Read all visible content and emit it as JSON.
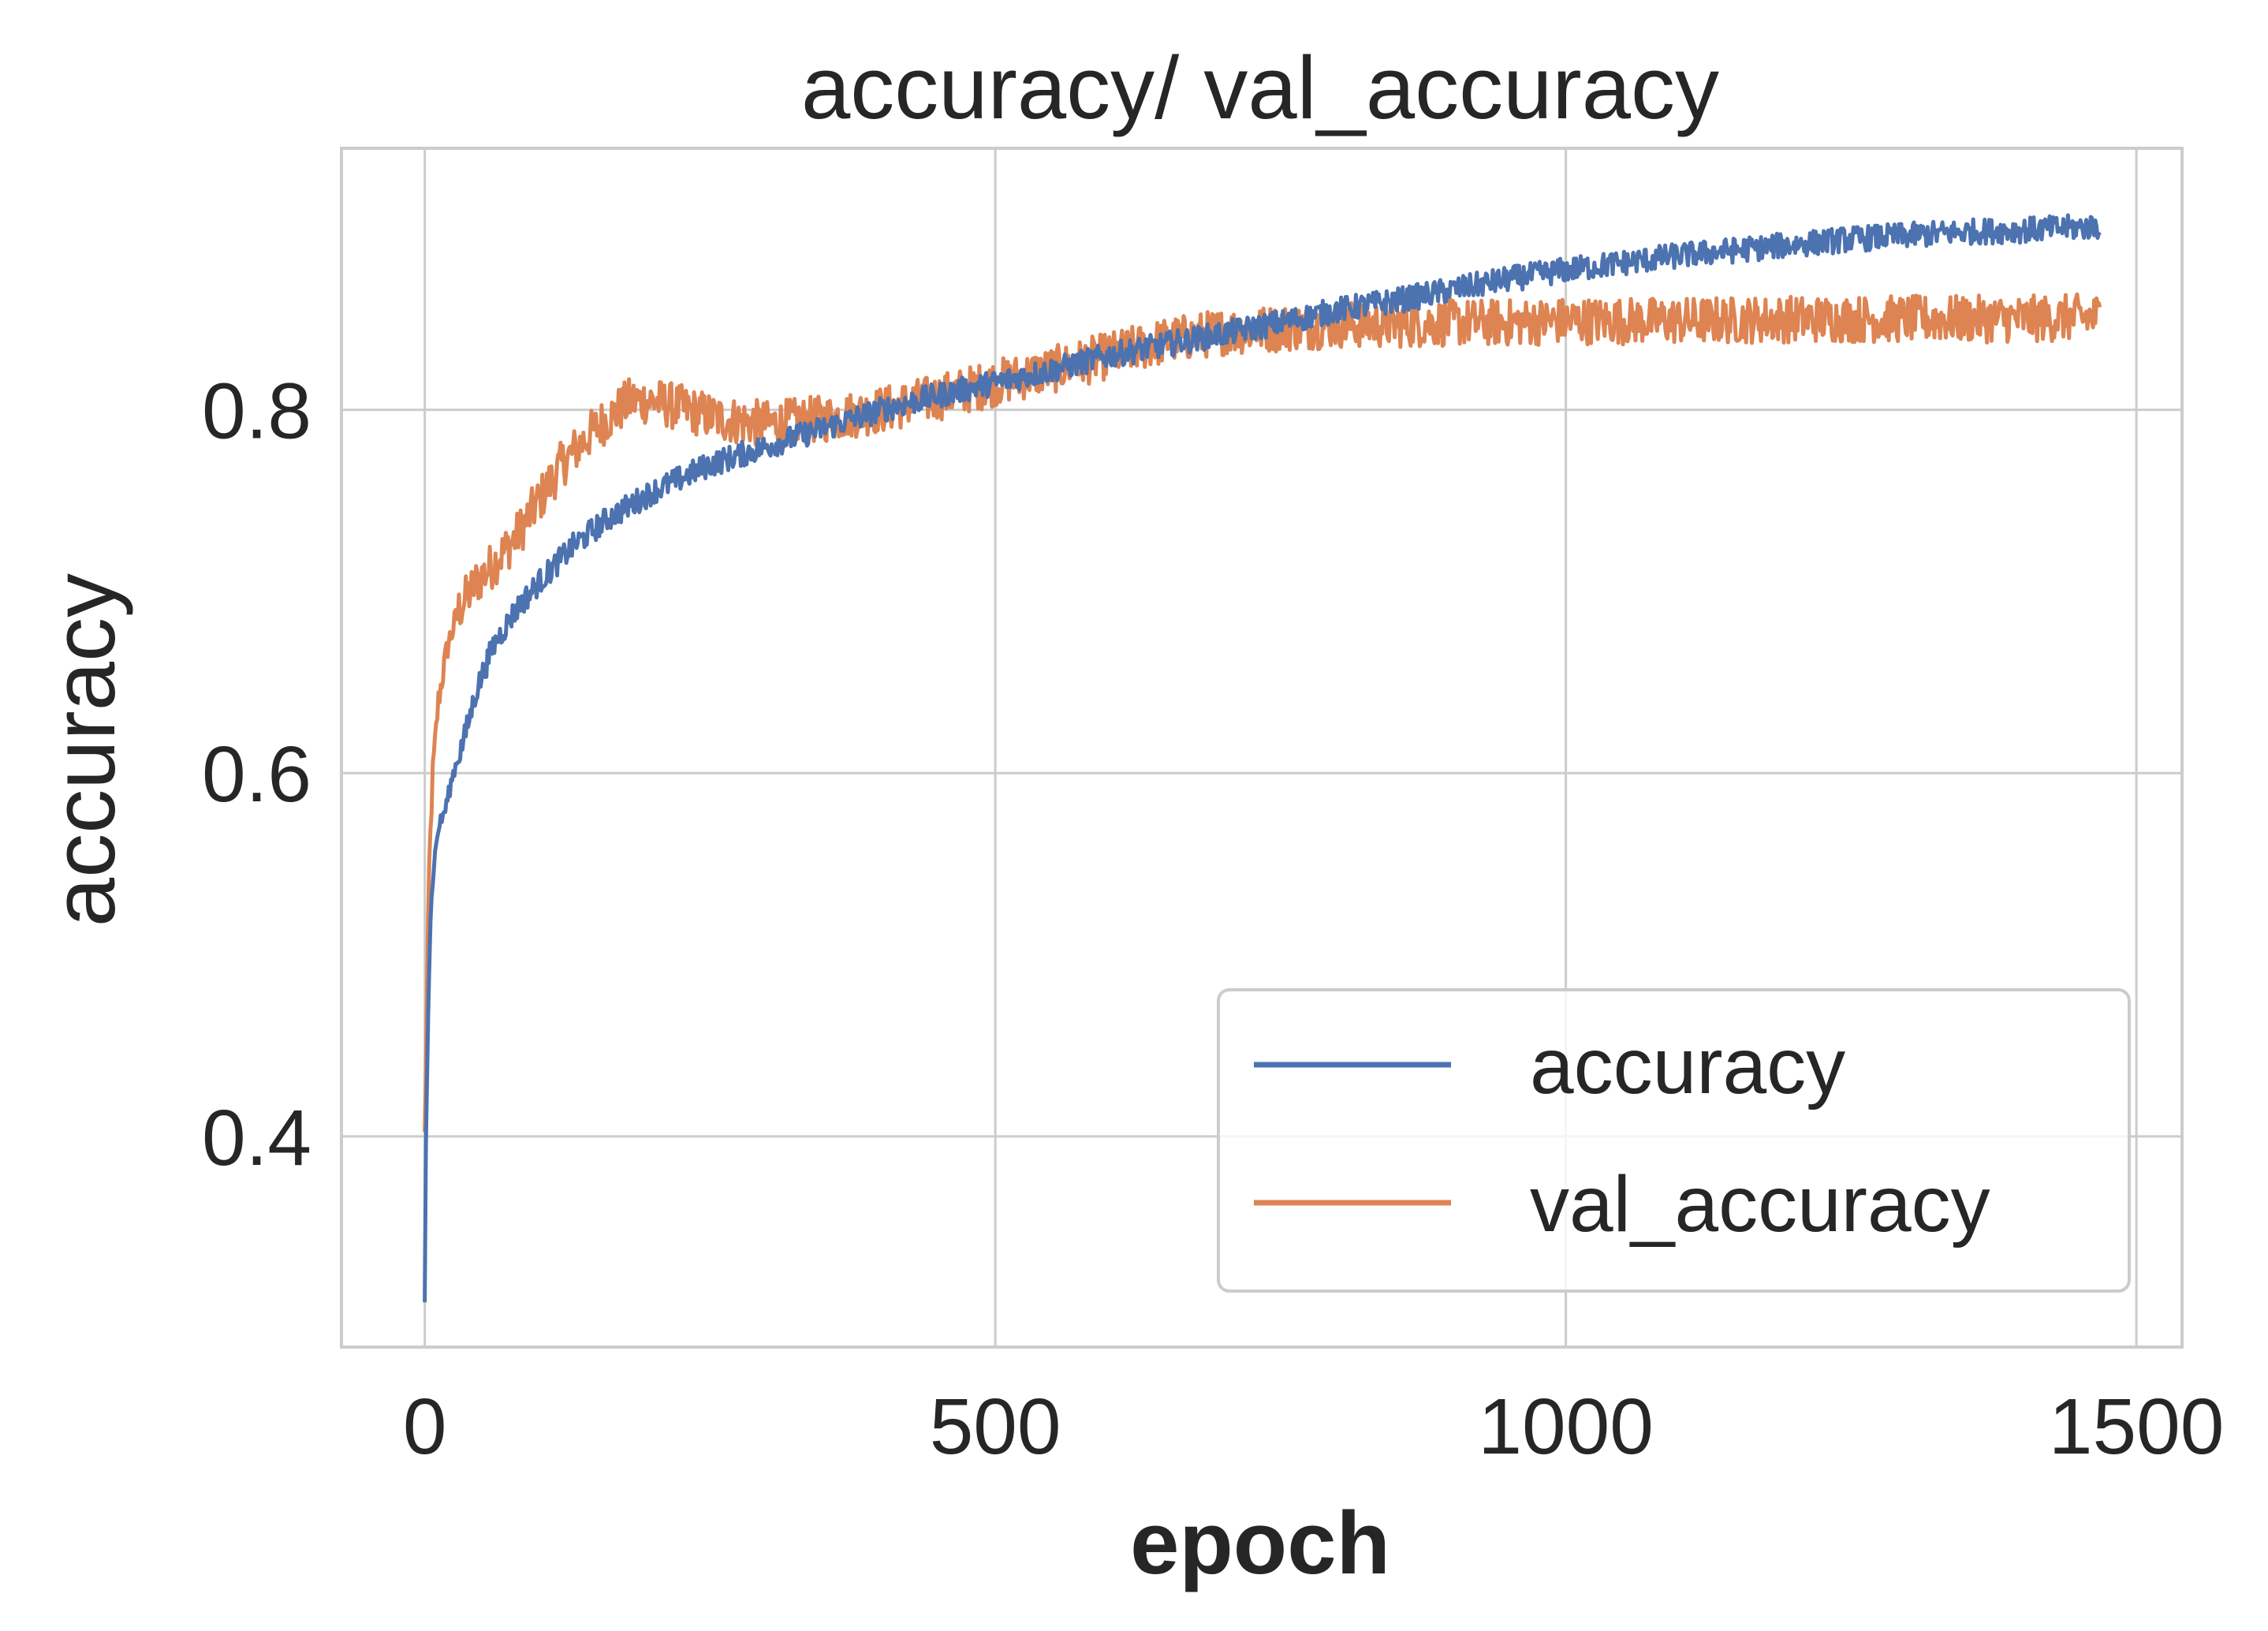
{
  "chart_data": {
    "type": "line",
    "title": "accuracy/ val_accuracy",
    "xlabel": "epoch",
    "ylabel": "accuracy",
    "xlim": [
      -73,
      1540
    ],
    "ylim": [
      0.284,
      0.944
    ],
    "xticks": [
      {
        "value": 0,
        "label": "0"
      },
      {
        "value": 500,
        "label": "500"
      },
      {
        "value": 1000,
        "label": "1000"
      },
      {
        "value": 1500,
        "label": "1500"
      }
    ],
    "yticks": [
      {
        "value": 0.4,
        "label": "0.4"
      },
      {
        "value": 0.6,
        "label": "0.6"
      },
      {
        "value": 0.8,
        "label": "0.8"
      }
    ],
    "grid": true,
    "legend_position": "lower-right",
    "series": [
      {
        "name": "accuracy",
        "color": "#4c72b0",
        "points": [
          [
            0,
            0.31
          ],
          [
            1,
            0.4
          ],
          [
            3,
            0.47
          ],
          [
            5,
            0.52
          ],
          [
            8,
            0.55
          ],
          [
            12,
            0.57
          ],
          [
            18,
            0.58
          ],
          [
            25,
            0.6
          ],
          [
            35,
            0.62
          ],
          [
            45,
            0.645
          ],
          [
            60,
            0.67
          ],
          [
            80,
            0.69
          ],
          [
            100,
            0.705
          ],
          [
            130,
            0.725
          ],
          [
            160,
            0.74
          ],
          [
            200,
            0.755
          ],
          [
            250,
            0.77
          ],
          [
            300,
            0.78
          ],
          [
            350,
            0.79
          ],
          [
            400,
            0.8
          ],
          [
            450,
            0.808
          ],
          [
            500,
            0.815
          ],
          [
            550,
            0.822
          ],
          [
            600,
            0.83
          ],
          [
            650,
            0.836
          ],
          [
            700,
            0.842
          ],
          [
            750,
            0.848
          ],
          [
            800,
            0.855
          ],
          [
            850,
            0.86
          ],
          [
            900,
            0.866
          ],
          [
            950,
            0.872
          ],
          [
            1000,
            0.877
          ],
          [
            1050,
            0.881
          ],
          [
            1100,
            0.885
          ],
          [
            1150,
            0.888
          ],
          [
            1200,
            0.891
          ],
          [
            1250,
            0.894
          ],
          [
            1300,
            0.896
          ],
          [
            1350,
            0.898
          ],
          [
            1400,
            0.899
          ],
          [
            1468,
            0.901
          ]
        ]
      },
      {
        "name": "val_accuracy",
        "color": "#dd8452",
        "points": [
          [
            0,
            0.4
          ],
          [
            2,
            0.48
          ],
          [
            4,
            0.55
          ],
          [
            7,
            0.6
          ],
          [
            12,
            0.64
          ],
          [
            20,
            0.67
          ],
          [
            30,
            0.69
          ],
          [
            45,
            0.705
          ],
          [
            60,
            0.715
          ],
          [
            80,
            0.73
          ],
          [
            100,
            0.75
          ],
          [
            120,
            0.77
          ],
          [
            150,
            0.79
          ],
          [
            180,
            0.805
          ],
          [
            200,
            0.805
          ],
          [
            230,
            0.8
          ],
          [
            260,
            0.795
          ],
          [
            300,
            0.792
          ],
          [
            350,
            0.795
          ],
          [
            400,
            0.8
          ],
          [
            450,
            0.807
          ],
          [
            500,
            0.815
          ],
          [
            550,
            0.822
          ],
          [
            600,
            0.83
          ],
          [
            650,
            0.838
          ],
          [
            700,
            0.843
          ],
          [
            750,
            0.845
          ],
          [
            800,
            0.847
          ],
          [
            850,
            0.847
          ],
          [
            900,
            0.848
          ],
          [
            950,
            0.848
          ],
          [
            1000,
            0.849
          ],
          [
            1100,
            0.849
          ],
          [
            1200,
            0.85
          ],
          [
            1300,
            0.85
          ],
          [
            1400,
            0.85
          ],
          [
            1468,
            0.851
          ]
        ]
      }
    ]
  }
}
